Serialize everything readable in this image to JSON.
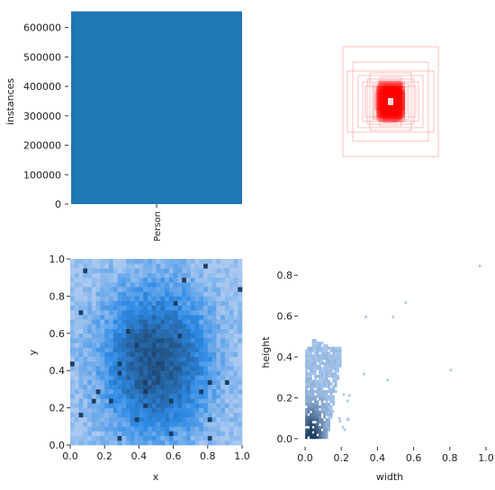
{
  "chart_data": [
    {
      "type": "bar",
      "categories": [
        "Person"
      ],
      "values": [
        655000
      ],
      "ylabel": "instances",
      "ylim": [
        0,
        660000
      ],
      "yticks": [
        0,
        100000,
        200000,
        300000,
        400000,
        500000,
        600000
      ],
      "ytick_labels": [
        "0",
        "100000",
        "200000",
        "300000",
        "400000",
        "500000",
        "600000"
      ],
      "color": "#1f77b4"
    },
    {
      "type": "other",
      "description_free": true,
      "color": "#ff0000"
    },
    {
      "type": "heatmap",
      "xlabel": "x",
      "ylabel": "y",
      "xlim": [
        0,
        1
      ],
      "ylim": [
        0,
        1
      ],
      "xticks": [
        "0.0",
        "0.2",
        "0.4",
        "0.6",
        "0.8",
        "1.0"
      ],
      "yticks": [
        "0.0",
        "0.2",
        "0.4",
        "0.6",
        "0.8",
        "1.0"
      ],
      "center": [
        0.5,
        0.45
      ],
      "color_light": "#a9c8f0",
      "color_mid": "#2e8be6",
      "color_dark": "#1d3f63"
    },
    {
      "type": "heatmap",
      "xlabel": "width",
      "ylabel": "height",
      "xlim": [
        -0.04,
        1.0
      ],
      "ylim": [
        -0.04,
        0.88
      ],
      "xticks": [
        "0.0",
        "0.2",
        "0.4",
        "0.6",
        "0.8",
        "1.0"
      ],
      "yticks": [
        "0.0",
        "0.2",
        "0.4",
        "0.6",
        "0.8"
      ],
      "outliers": [
        {
          "x": 0.33,
          "y": 0.59
        },
        {
          "x": 0.48,
          "y": 0.59
        },
        {
          "x": 0.55,
          "y": 0.66
        },
        {
          "x": 0.32,
          "y": 0.31
        },
        {
          "x": 0.45,
          "y": 0.28
        },
        {
          "x": 0.8,
          "y": 0.33
        },
        {
          "x": 0.96,
          "y": 0.84
        }
      ],
      "color_light": "#a9c8f0",
      "color_dark": "#1d3f63"
    }
  ]
}
